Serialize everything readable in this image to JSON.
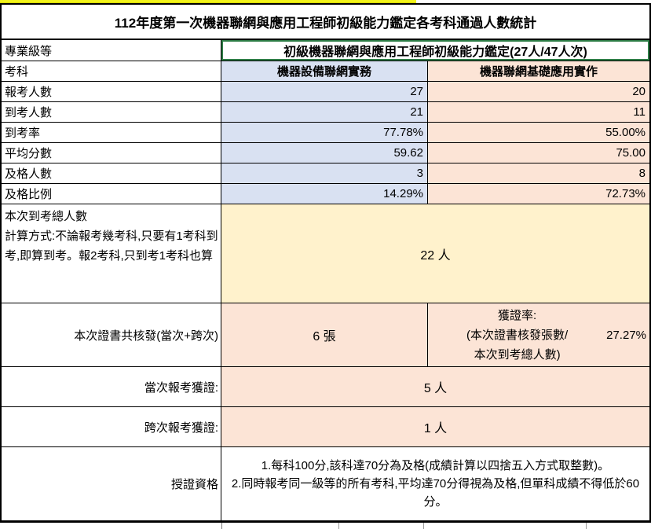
{
  "title": "112年度第一次機器聯網與應用工程師初級能力鑑定各考科通過人數統計",
  "pro_level": {
    "label": "專業級等",
    "value": "初級機器聯網與應用工程師初級能力鑑定(27人/47人次)"
  },
  "subjects": {
    "label": "考科",
    "col1": "機器設備聯網實務",
    "col2": "機器聯網基礎應用實作"
  },
  "metrics": {
    "rows": [
      {
        "label": "報考人數",
        "col1": "27",
        "col2": "20"
      },
      {
        "label": "到考人數",
        "col1": "21",
        "col2": "11"
      },
      {
        "label": "到考率",
        "col1": "77.78%",
        "col2": "55.00%"
      },
      {
        "label": "平均分數",
        "col1": "59.62",
        "col2": "75.00"
      },
      {
        "label": "及格人數",
        "col1": "3",
        "col2": "8"
      },
      {
        "label": "及格比例",
        "col1": "14.29%",
        "col2": "72.73%"
      }
    ]
  },
  "attendance_total": {
    "label": "本次到考總人數\n計算方式:不論報考幾考科,只要有1考科到考,即算到考。報2考科,只到考1考科也算",
    "value": "22 人"
  },
  "certificates": {
    "label": "本次證書共核發(當次+跨次)",
    "count": "6 張",
    "rate_label": "獲證率:\n(本次證書核發張數/\n本次到考總人數)",
    "rate_value": "27.27%"
  },
  "current_session": {
    "label": "當次報考獲證:",
    "value": "5 人"
  },
  "cross_session": {
    "label": "跨次報考獲證:",
    "value": "1 人"
  },
  "qualification": {
    "label": "授證資格",
    "rule1": "1.每科100分,該科達70分為及格(成績計算以四捨五入方式取整數)。",
    "rule2": "2.同時報考同一級等的所有考科,平均達70分得視為及格,但單科成績不得低於60分。"
  },
  "colors": {
    "subject1_bg": "#d9e1f2",
    "subject2_bg": "#fce4d6",
    "highlight_bg": "#fff2cc",
    "green_border": "#2e7d46",
    "top_bar": "#f2f31b"
  }
}
